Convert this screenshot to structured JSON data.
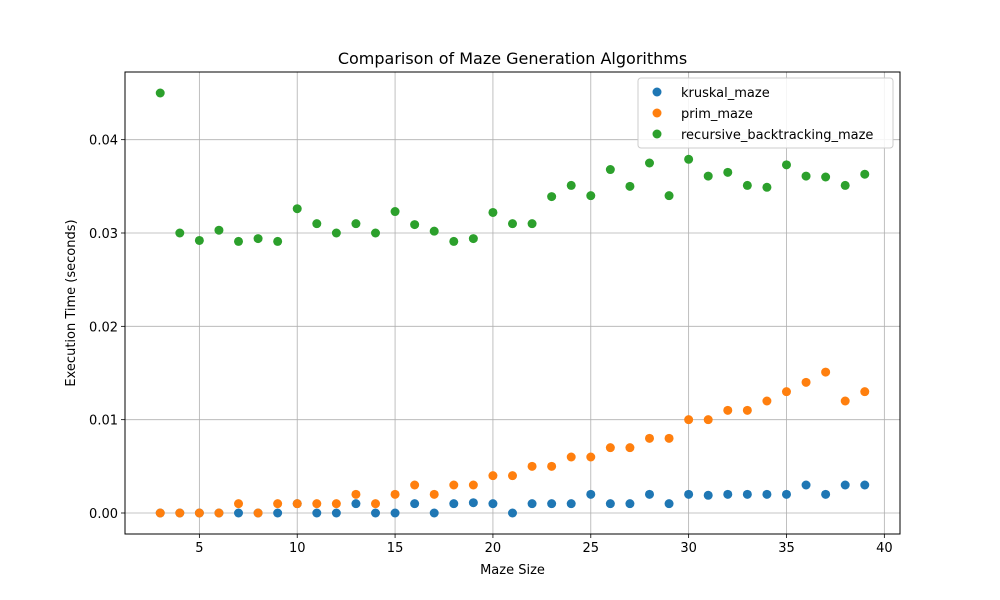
{
  "chart_data": {
    "type": "scatter",
    "title": "Comparison of Maze Generation Algorithms",
    "xlabel": "Maze Size",
    "ylabel": "Execution Time (seconds)",
    "xlim": [
      1.2,
      40.8
    ],
    "ylim": [
      -0.00225,
      0.04725
    ],
    "xticks": [
      5,
      10,
      15,
      20,
      25,
      30,
      35,
      40
    ],
    "xtick_labels": [
      "5",
      "10",
      "15",
      "20",
      "25",
      "30",
      "35",
      "40"
    ],
    "yticks": [
      0.0,
      0.01,
      0.02,
      0.03,
      0.04
    ],
    "ytick_labels": [
      "0.00",
      "0.01",
      "0.02",
      "0.03",
      "0.04"
    ],
    "grid": true,
    "legend_position": "top-right",
    "x": [
      3,
      4,
      5,
      6,
      7,
      8,
      9,
      10,
      11,
      12,
      13,
      14,
      15,
      16,
      17,
      18,
      19,
      20,
      21,
      22,
      23,
      24,
      25,
      26,
      27,
      28,
      29,
      30,
      31,
      32,
      33,
      34,
      35,
      36,
      37,
      38,
      39
    ],
    "series": [
      {
        "name": "kruskal_maze",
        "color": "#1f77b4",
        "values": [
          0.0,
          0.0,
          0.0,
          0.0,
          0.0,
          0.0,
          0.0,
          0.001,
          0.0,
          0.0,
          0.001,
          0.0,
          0.0,
          0.001,
          0.0,
          0.001,
          0.0011,
          0.001,
          0.0,
          0.001,
          0.001,
          0.001,
          0.002,
          0.001,
          0.001,
          0.002,
          0.001,
          0.002,
          0.0019,
          0.002,
          0.002,
          0.002,
          0.002,
          0.003,
          0.002,
          0.003,
          0.003
        ]
      },
      {
        "name": "prim_maze",
        "color": "#ff7f0e",
        "values": [
          0.0,
          0.0,
          0.0,
          0.0,
          0.001,
          0.0,
          0.001,
          0.001,
          0.001,
          0.001,
          0.002,
          0.001,
          0.002,
          0.003,
          0.002,
          0.003,
          0.003,
          0.004,
          0.004,
          0.005,
          0.005,
          0.006,
          0.006,
          0.007,
          0.007,
          0.008,
          0.008,
          0.01,
          0.01,
          0.011,
          0.011,
          0.012,
          0.013,
          0.014,
          0.0151,
          0.012,
          0.013
        ]
      },
      {
        "name": "recursive_backtracking_maze",
        "color": "#2ca02c",
        "values": [
          0.045,
          0.03,
          0.0292,
          0.0303,
          0.0291,
          0.0294,
          0.0291,
          0.0326,
          0.031,
          0.03,
          0.031,
          0.03,
          0.0323,
          0.0309,
          0.0302,
          0.0291,
          0.0294,
          0.0322,
          0.031,
          0.031,
          0.0339,
          0.0351,
          0.034,
          0.0368,
          0.035,
          0.0375,
          0.034,
          0.0379,
          0.0361,
          0.0365,
          0.0351,
          0.0349,
          0.0373,
          0.0361,
          0.036,
          0.0351,
          0.0363
        ]
      }
    ]
  }
}
